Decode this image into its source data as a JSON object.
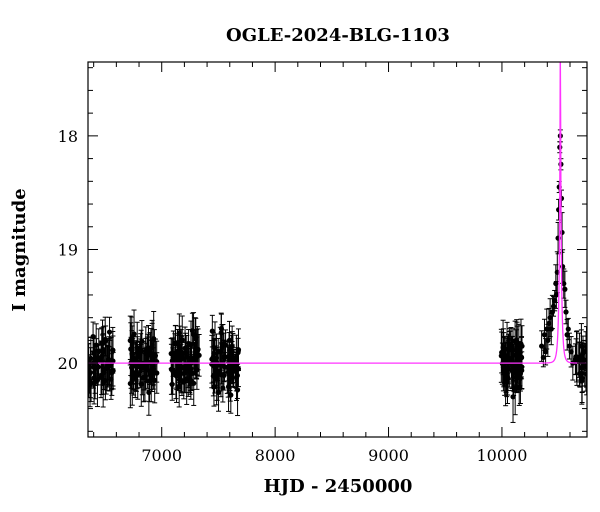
{
  "chart_data": {
    "type": "scatter",
    "title": "OGLE-2024-BLG-1103",
    "xlabel": "HJD - 2450000",
    "ylabel": "I magnitude",
    "xlim": [
      6350,
      10750
    ],
    "ylim": [
      20.65,
      17.35
    ],
    "y_axis_inverted": true,
    "x_ticks": [
      7000,
      8000,
      9000,
      10000
    ],
    "x_tick_labels": [
      "7000",
      "8000",
      "9000",
      "10000"
    ],
    "y_ticks": [
      18,
      19,
      20
    ],
    "y_tick_labels": [
      "18",
      "19",
      "20"
    ],
    "grid": false,
    "legend": "none",
    "colors": {
      "data": "#000000",
      "model": "#ff33ff"
    },
    "observing_seasons": [
      {
        "start": 6350,
        "end": 6580,
        "mean_mag": 20.0,
        "scatter": 0.22,
        "n_points": 55
      },
      {
        "start": 6720,
        "end": 6960,
        "mean_mag": 20.0,
        "scatter": 0.22,
        "n_points": 70
      },
      {
        "start": 7080,
        "end": 7330,
        "mean_mag": 20.0,
        "scatter": 0.24,
        "n_points": 75
      },
      {
        "start": 7440,
        "end": 7680,
        "mean_mag": 20.0,
        "scatter": 0.24,
        "n_points": 70
      },
      {
        "start": 9990,
        "end": 10180,
        "mean_mag": 20.0,
        "scatter": 0.22,
        "n_points": 70
      },
      {
        "start": 10640,
        "end": 10750,
        "mean_mag": 20.0,
        "scatter": 0.18,
        "n_points": 22
      }
    ],
    "event_points": [
      {
        "x": 10350,
        "y": 19.85
      },
      {
        "x": 10365,
        "y": 19.95
      },
      {
        "x": 10375,
        "y": 19.75
      },
      {
        "x": 10385,
        "y": 19.9
      },
      {
        "x": 10395,
        "y": 19.7
      },
      {
        "x": 10405,
        "y": 19.8
      },
      {
        "x": 10415,
        "y": 19.65
      },
      {
        "x": 10425,
        "y": 19.6
      },
      {
        "x": 10435,
        "y": 19.7
      },
      {
        "x": 10445,
        "y": 19.55
      },
      {
        "x": 10455,
        "y": 19.5
      },
      {
        "x": 10465,
        "y": 19.45
      },
      {
        "x": 10475,
        "y": 19.3
      },
      {
        "x": 10480,
        "y": 19.4
      },
      {
        "x": 10488,
        "y": 19.2
      },
      {
        "x": 10495,
        "y": 18.9
      },
      {
        "x": 10500,
        "y": 18.65
      },
      {
        "x": 10505,
        "y": 18.45
      },
      {
        "x": 10510,
        "y": 18.1
      },
      {
        "x": 10515,
        "y": 18.0
      },
      {
        "x": 10520,
        "y": 18.25
      },
      {
        "x": 10525,
        "y": 18.55
      },
      {
        "x": 10530,
        "y": 18.85
      },
      {
        "x": 10535,
        "y": 19.15
      },
      {
        "x": 10545,
        "y": 19.3
      },
      {
        "x": 10555,
        "y": 19.35
      },
      {
        "x": 10565,
        "y": 19.55
      },
      {
        "x": 10575,
        "y": 19.75
      },
      {
        "x": 10585,
        "y": 19.7
      },
      {
        "x": 10595,
        "y": 19.85
      },
      {
        "x": 10610,
        "y": 19.9
      },
      {
        "x": 10625,
        "y": 20.0
      }
    ],
    "model": {
      "type": "point-lens light curve",
      "baseline_mag": 20.0,
      "t0": 10515,
      "tE": 20,
      "u0": 0.05
    }
  }
}
